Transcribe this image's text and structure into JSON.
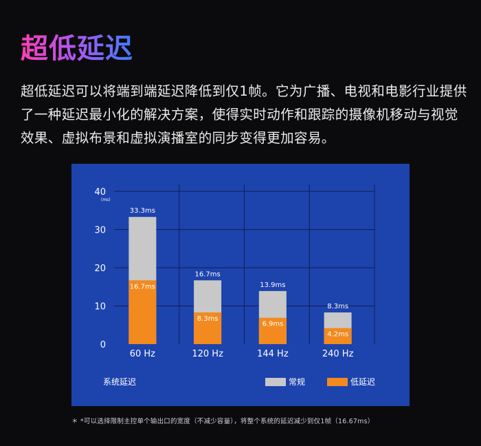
{
  "page": {
    "title": "超低延迟",
    "description": "超低延迟可以将端到端延迟降低到仅1帧。它为广播、电视和电影行业提供了一种延迟最小化的解决方案，使得实时动作和跟踪的摄像机移动与视觉效果、虚拟布景和虚拟演播室的同步变得更加容易。",
    "footnote": "＊ *可以选择限制主控单个输出口的宽度（不减少容量），将整个系统的延迟减少到仅1帧（16.67ms）"
  },
  "colors": {
    "panel": "#1d43ad",
    "normal": "#c8c8c8",
    "low": "#f28a1f",
    "grid": "#0e1f55"
  },
  "chart_data": {
    "type": "bar",
    "stacked": "overlay",
    "categories": [
      "60 Hz",
      "120 Hz",
      "144 Hz",
      "240 Hz"
    ],
    "series": [
      {
        "name": "常规",
        "values": [
          33.3,
          16.7,
          13.9,
          8.3
        ],
        "labels": [
          "33.3ms",
          "16.7ms",
          "13.9ms",
          "8.3ms"
        ],
        "color": "#c8c8c8"
      },
      {
        "name": "低延迟",
        "values": [
          16.7,
          8.3,
          6.9,
          4.2
        ],
        "labels": [
          "16.7ms",
          "8.3ms",
          "6.9ms",
          "4.2ms"
        ],
        "color": "#f28a1f"
      }
    ],
    "ylim": [
      0,
      40
    ],
    "yticks": [
      0,
      10,
      20,
      30,
      40
    ],
    "yunit": "(ms)",
    "legend_title": "系统延迟",
    "grid": true
  }
}
